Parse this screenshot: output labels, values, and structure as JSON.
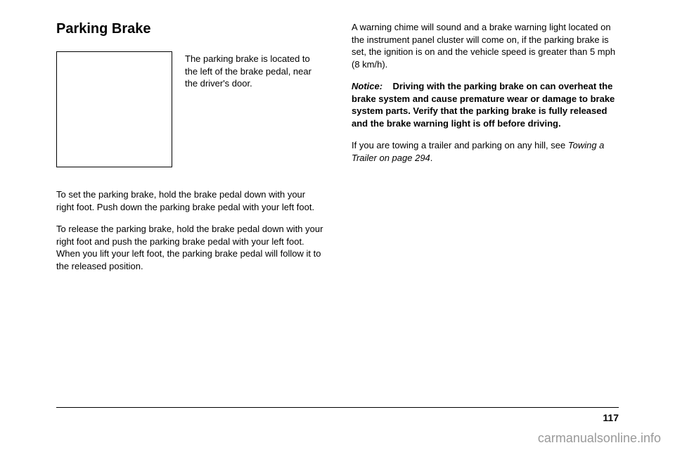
{
  "heading": "Parking Brake",
  "sideText": "The parking brake is located to the left of the brake pedal, near the driver's door.",
  "leftParagraphs": [
    "To set the parking brake, hold the brake pedal down with your right foot. Push down the parking brake pedal with your left foot.",
    "To release the parking brake, hold the brake pedal down with your right foot and push the parking brake pedal with your left foot. When you lift your left foot, the parking brake pedal will follow it to the released position."
  ],
  "rightParagraph1": "A warning chime will sound and a brake warning light located on the instrument panel cluster will come on, if the parking brake is set, the ignition is on and the vehicle speed is greater than 5 mph (8 km/h).",
  "noticeLabel": "Notice:",
  "noticeText": "Driving with the parking brake on can overheat the brake system and cause premature wear or damage to brake system parts. Verify that the parking brake is fully released and the brake warning light is off before driving.",
  "rightParagraph3Part1": "If you are towing a trailer and parking on any hill, see ",
  "rightParagraph3Italic": "Towing a Trailer on page 294",
  "rightParagraph3Part2": ".",
  "pageNumber": "117",
  "watermark": "carmanualsonline.info"
}
